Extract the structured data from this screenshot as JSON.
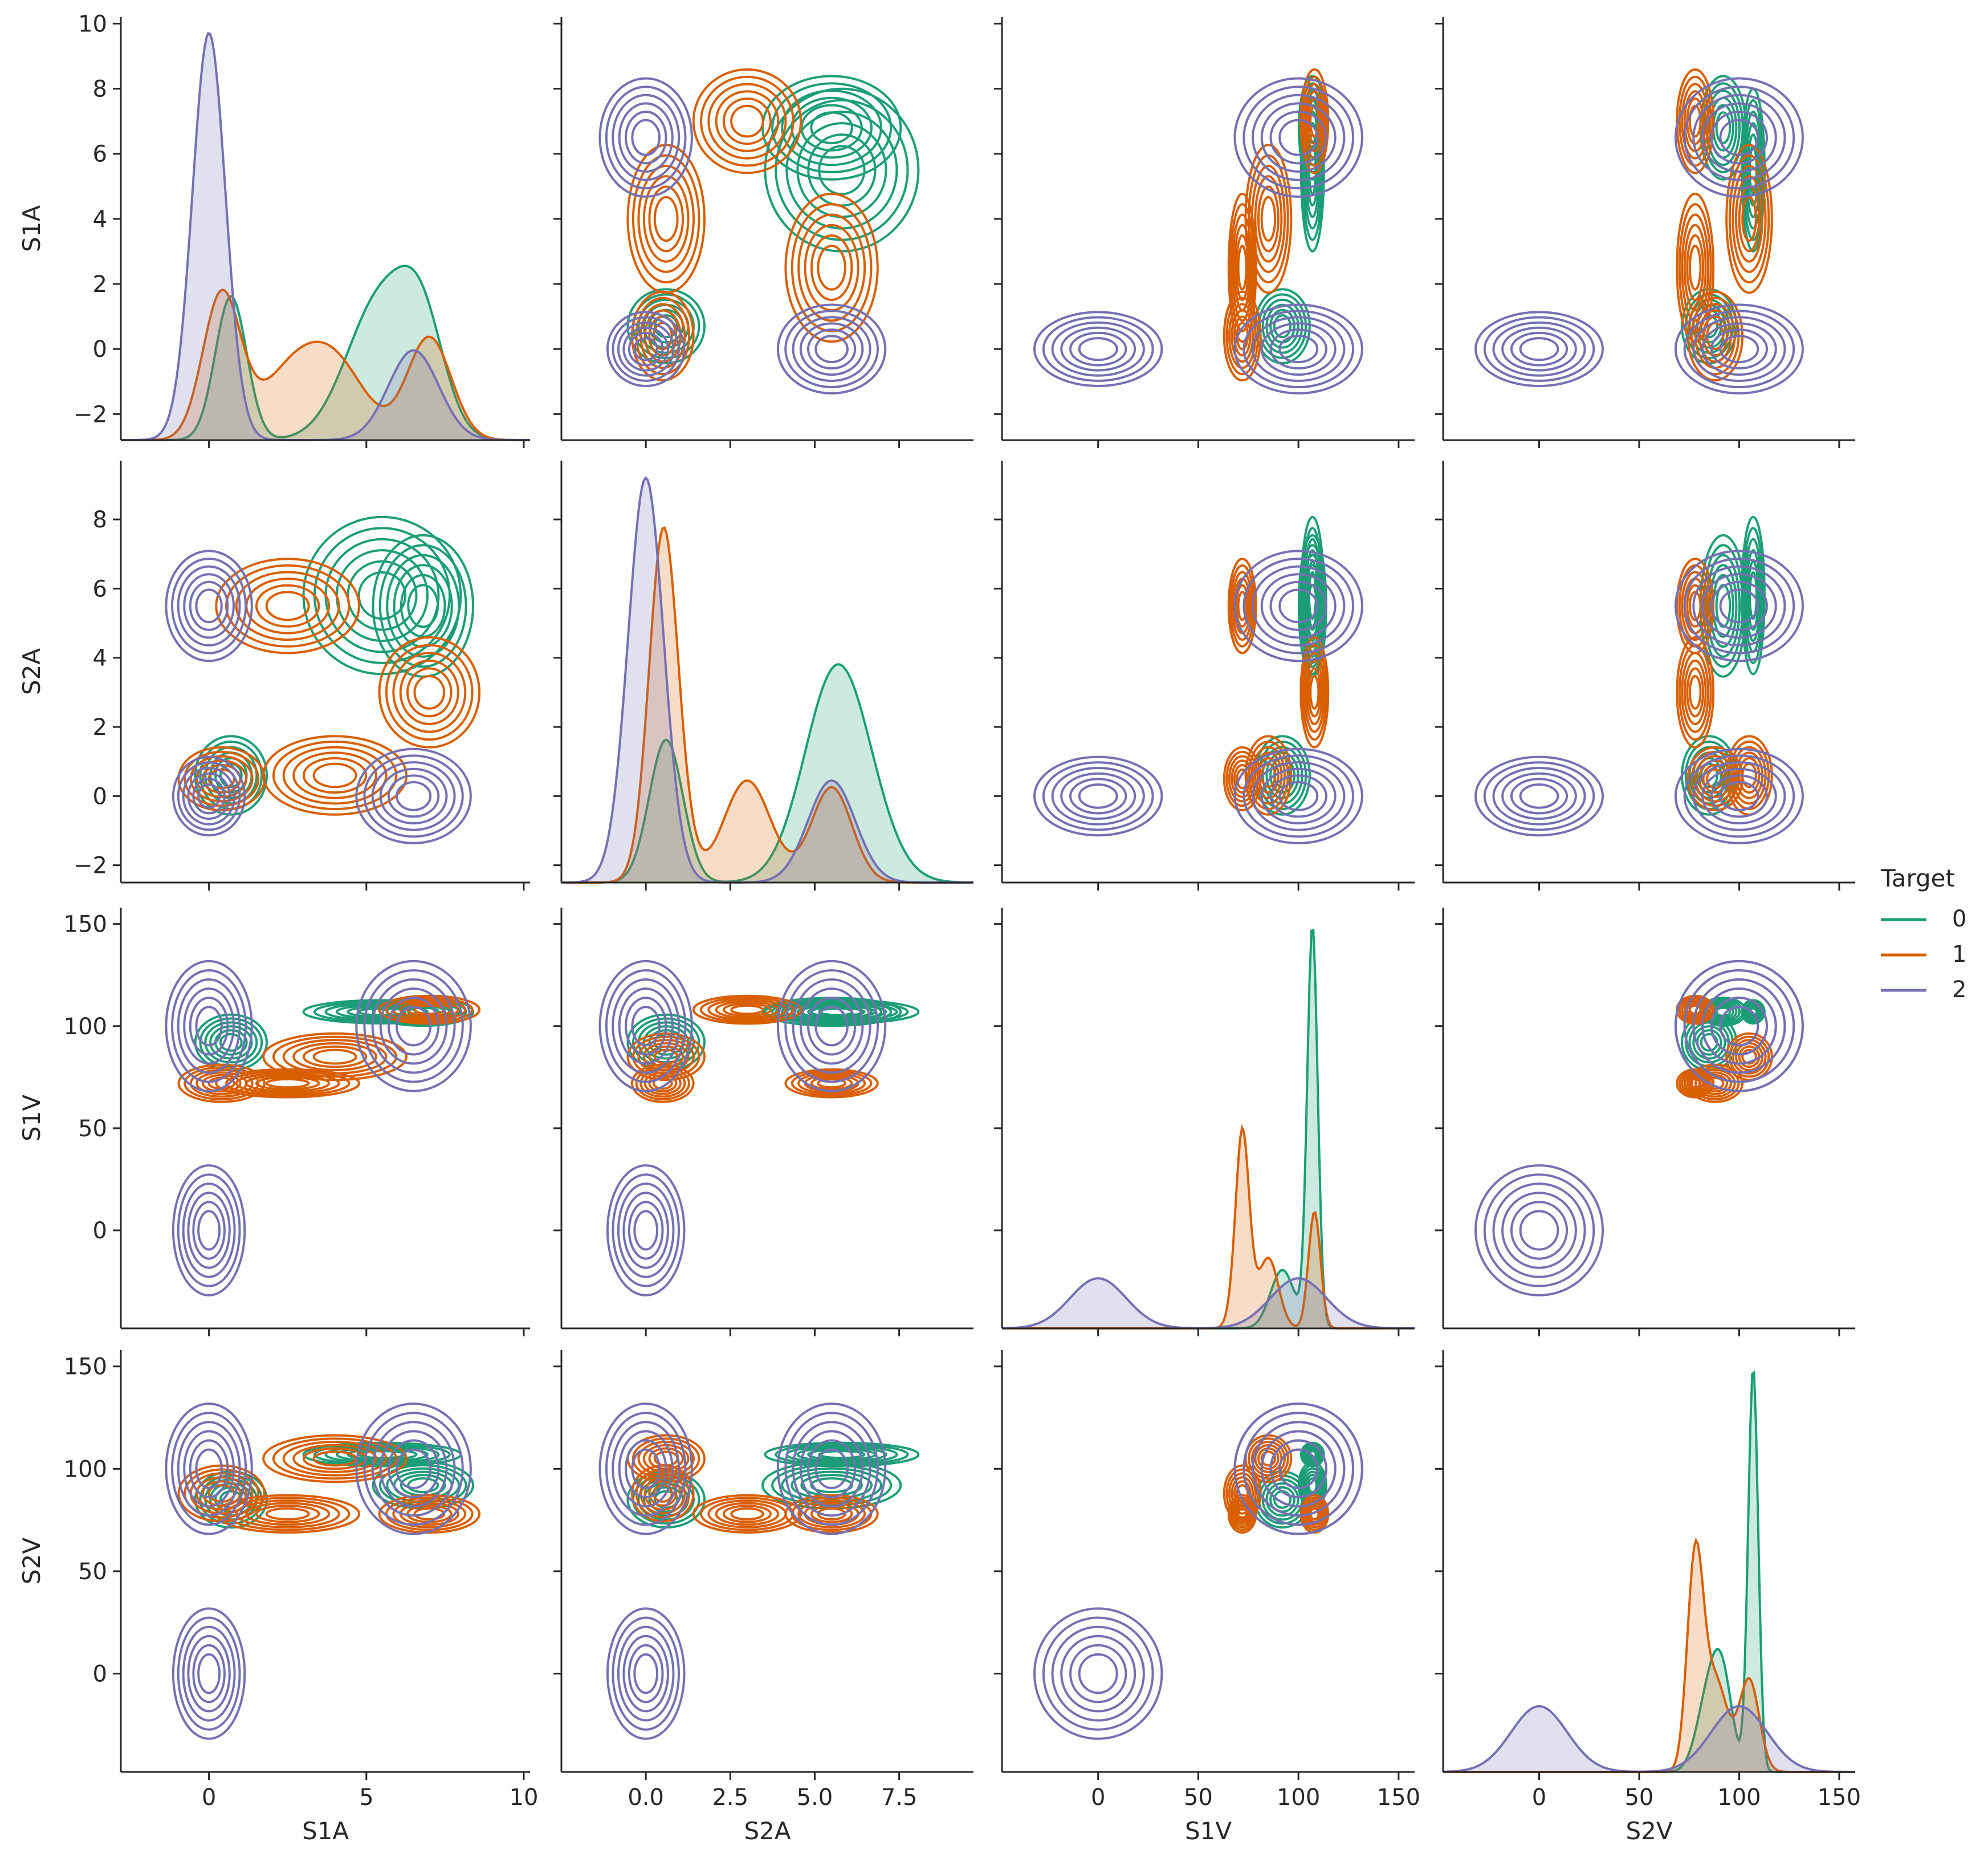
{
  "chart_data": {
    "type": "pairplot",
    "title": "",
    "hue_title": "Target",
    "variables": [
      "S1A",
      "S2A",
      "S1V",
      "S2V"
    ],
    "ranges": {
      "S1A": [
        -2.8,
        10.2
      ],
      "S2A": [
        -2.5,
        9.7
      ],
      "S1V": [
        -48,
        158
      ],
      "S2V": [
        -48,
        158
      ]
    },
    "ticks": {
      "S1A": {
        "values": [
          0,
          5,
          10
        ],
        "labels": [
          "0",
          "5",
          "10"
        ]
      },
      "S2A": {
        "values": [
          0.0,
          2.5,
          5.0,
          7.5
        ],
        "labels": [
          "0.0",
          "2.5",
          "5.0",
          "7.5"
        ]
      },
      "S1V": {
        "values": [
          0,
          50,
          100,
          150
        ],
        "labels": [
          "0",
          "50",
          "100",
          "150"
        ]
      },
      "S2V": {
        "values": [
          0,
          50,
          100,
          150
        ],
        "labels": [
          "0",
          "50",
          "100",
          "150"
        ]
      }
    },
    "row0_yticks": {
      "values": [
        -2,
        0,
        2,
        4,
        6,
        8,
        10
      ],
      "labels": [
        "−2",
        "0",
        "2",
        "4",
        "6",
        "8",
        "10"
      ]
    },
    "row1_yticks": {
      "values": [
        -2,
        0,
        2,
        4,
        6,
        8
      ],
      "labels": [
        "−2",
        "0",
        "2",
        "4",
        "6",
        "8"
      ]
    },
    "row2_yticks": {
      "values": [
        0,
        50,
        100,
        150
      ],
      "labels": [
        "0",
        "50",
        "100",
        "150"
      ]
    },
    "row3_yticks": {
      "values": [
        0,
        50,
        100,
        150
      ],
      "labels": [
        "0",
        "50",
        "100",
        "150"
      ]
    },
    "diag_peak_axis_value": {
      "S1A": 9.7,
      "S2A": 9.2,
      "S1V": 147,
      "S2V": 147
    },
    "series": [
      {
        "name": "0",
        "color": "#1b9e77",
        "clusters": [
          {
            "S1A": 5.5,
            "S2A": 5.8,
            "S1V": 107,
            "S2V": 107,
            "sd": {
              "S1A": 1.1,
              "S2A": 1.0,
              "S1V": 2.5,
              "S2V": 2.5
            },
            "w": 0.55
          },
          {
            "S1A": 6.8,
            "S2A": 5.5,
            "S1V": 107,
            "S2V": 92,
            "sd": {
              "S1A": 0.7,
              "S2A": 0.9,
              "S1V": 3.0,
              "S2V": 5.0
            },
            "w": 0.2
          },
          {
            "S1A": 0.7,
            "S2A": 0.6,
            "S1V": 92,
            "S2V": 85,
            "sd": {
              "S1A": 0.5,
              "S2A": 0.5,
              "S1V": 6.0,
              "S2V": 6.0
            },
            "w": 0.25
          }
        ]
      },
      {
        "name": "1",
        "color": "#d95f02",
        "clusters": [
          {
            "S1A": 0.4,
            "S2A": 0.5,
            "S1V": 72,
            "S2V": 88,
            "sd": {
              "S1A": 0.6,
              "S2A": 0.4,
              "S1V": 4.0,
              "S2V": 6.0
            },
            "w": 0.3
          },
          {
            "S1A": 2.5,
            "S2A": 5.5,
            "S1V": 72,
            "S2V": 78,
            "sd": {
              "S1A": 1.0,
              "S2A": 0.6,
              "S1V": 3.0,
              "S2V": 4.0
            },
            "w": 0.2
          },
          {
            "S1A": 7.0,
            "S2A": 3.0,
            "S1V": 108,
            "S2V": 78,
            "sd": {
              "S1A": 0.7,
              "S2A": 0.7,
              "S1V": 3.0,
              "S2V": 4.0
            },
            "w": 0.25
          },
          {
            "S1A": 4.0,
            "S2A": 0.6,
            "S1V": 85,
            "S2V": 105,
            "sd": {
              "S1A": 1.0,
              "S2A": 0.5,
              "S1V": 5.0,
              "S2V": 5.0
            },
            "w": 0.25
          }
        ]
      },
      {
        "name": "2",
        "color": "#7570b3",
        "clusters": [
          {
            "S1A": 0.0,
            "S2A": 0.0,
            "S1V": 0,
            "S2V": 0,
            "sd": {
              "S1A": 0.5,
              "S2A": 0.5,
              "S1V": 14,
              "S2V": 14
            },
            "w": 0.5
          },
          {
            "S1A": 0.0,
            "S2A": 5.5,
            "S1V": 100,
            "S2V": 100,
            "sd": {
              "S1A": 0.6,
              "S2A": 0.7,
              "S1V": 14,
              "S2V": 14
            },
            "w": 0.25
          },
          {
            "S1A": 6.5,
            "S2A": 0.0,
            "S1V": 100,
            "S2V": 100,
            "sd": {
              "S1A": 0.8,
              "S2A": 0.6,
              "S1V": 14,
              "S2V": 14
            },
            "w": 0.25
          }
        ]
      }
    ],
    "legend": {
      "title": "Target",
      "entries": [
        "0",
        "1",
        "2"
      ],
      "placement": "right"
    }
  }
}
